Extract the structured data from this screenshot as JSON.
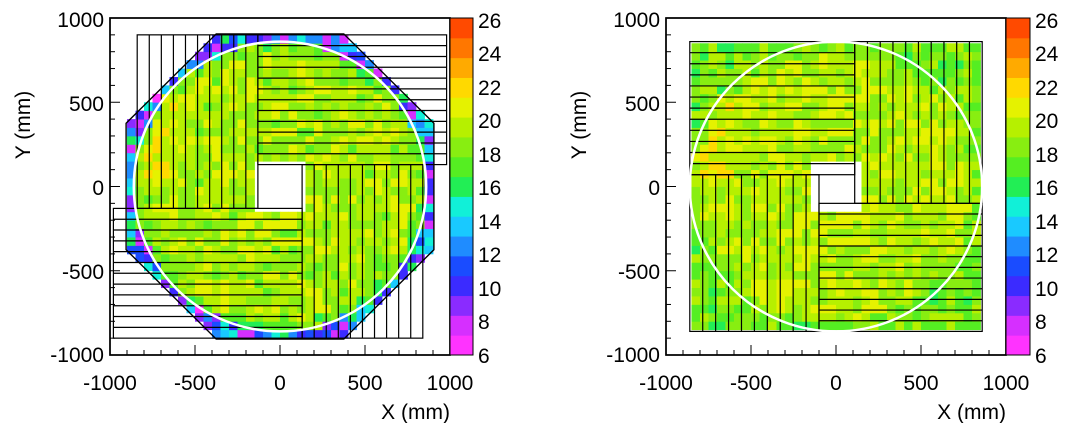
{
  "chart_data": [
    {
      "type": "heatmap",
      "title": "",
      "xlabel": "X (mm)",
      "ylabel": "Y (mm)",
      "xlim": [
        -1000,
        1000
      ],
      "ylim": [
        -1000,
        1000
      ],
      "xticks": [
        "-1000",
        "-500",
        "0",
        "500",
        "1000"
      ],
      "yticks": [
        "1000",
        "500",
        "0",
        "-500",
        "-1000"
      ],
      "zlim": [
        6,
        26
      ],
      "zticks": [
        "26",
        "24",
        "22",
        "20",
        "18",
        "16",
        "14",
        "12",
        "10",
        "8",
        "6"
      ],
      "octagon_radius": 980,
      "circle": {
        "cx": 0,
        "cy": 0,
        "r": 860
      },
      "central_hole": {
        "x": [
          -130,
          130
        ],
        "y": [
          -130,
          130
        ]
      },
      "quadrants": [
        {
          "name": "top-left",
          "orientation": "vertical",
          "strips": 10,
          "x": [
            -840,
            -130
          ],
          "y": [
            -130,
            900
          ]
        },
        {
          "name": "top-right",
          "orientation": "horizontal",
          "strips": 12,
          "x": [
            -130,
            980
          ],
          "y": [
            130,
            900
          ]
        },
        {
          "name": "bottom-right",
          "orientation": "vertical",
          "strips": 10,
          "x": [
            130,
            840
          ],
          "y": [
            -900,
            130
          ]
        },
        {
          "name": "bottom-left",
          "orientation": "horizontal",
          "strips": 12,
          "x": [
            -980,
            130
          ],
          "y": [
            -900,
            -130
          ]
        }
      ],
      "cell_size_mm": 100,
      "value_model": {
        "base": 19.2,
        "rim_low": 7
      }
    },
    {
      "type": "heatmap",
      "title": "",
      "xlabel": "X (mm)",
      "ylabel": "Y (mm)",
      "xlim": [
        -1000,
        1000
      ],
      "ylim": [
        -1000,
        1000
      ],
      "xticks": [
        "-1000",
        "-500",
        "0",
        "500",
        "1000"
      ],
      "yticks": [
        "1000",
        "500",
        "0",
        "-500",
        "-1000"
      ],
      "zlim": [
        6,
        26
      ],
      "zticks": [
        "26",
        "24",
        "22",
        "20",
        "18",
        "16",
        "14",
        "12",
        "10",
        "8",
        "6"
      ],
      "circle": {
        "cx": 0,
        "cy": 0,
        "r": 860
      },
      "central_hole": {
        "x": [
          -170,
          170
        ],
        "y": [
          -170,
          170
        ]
      },
      "quadrants": [
        {
          "name": "top-left",
          "orientation": "horizontal",
          "strips": 12,
          "x": [
            -860,
            110
          ],
          "y": [
            70,
            860
          ]
        },
        {
          "name": "top-right",
          "orientation": "vertical",
          "strips": 10,
          "x": [
            110,
            860
          ],
          "y": [
            -100,
            860
          ]
        },
        {
          "name": "bottom-right",
          "orientation": "horizontal",
          "strips": 12,
          "x": [
            -100,
            860
          ],
          "y": [
            -860,
            -100
          ]
        },
        {
          "name": "bottom-left",
          "orientation": "vertical",
          "strips": 10,
          "x": [
            -860,
            -100
          ],
          "y": [
            -860,
            70
          ]
        }
      ],
      "cell_size_mm": 100,
      "value_model": {
        "base": 19.5,
        "rim_low": 17
      }
    }
  ],
  "colors": {
    "palette": [
      "#ff33ff",
      "#d62fff",
      "#8a2bff",
      "#3b2bff",
      "#1a4cff",
      "#1f8cff",
      "#19c9ff",
      "#11f0d8",
      "#22ee55",
      "#55ee22",
      "#88ee11",
      "#b6f000",
      "#e5f200",
      "#ffd900",
      "#ffaa00",
      "#ff7700",
      "#ff4a00"
    ],
    "strip_stroke": "#000000",
    "circle_stroke": "#ffffff"
  }
}
